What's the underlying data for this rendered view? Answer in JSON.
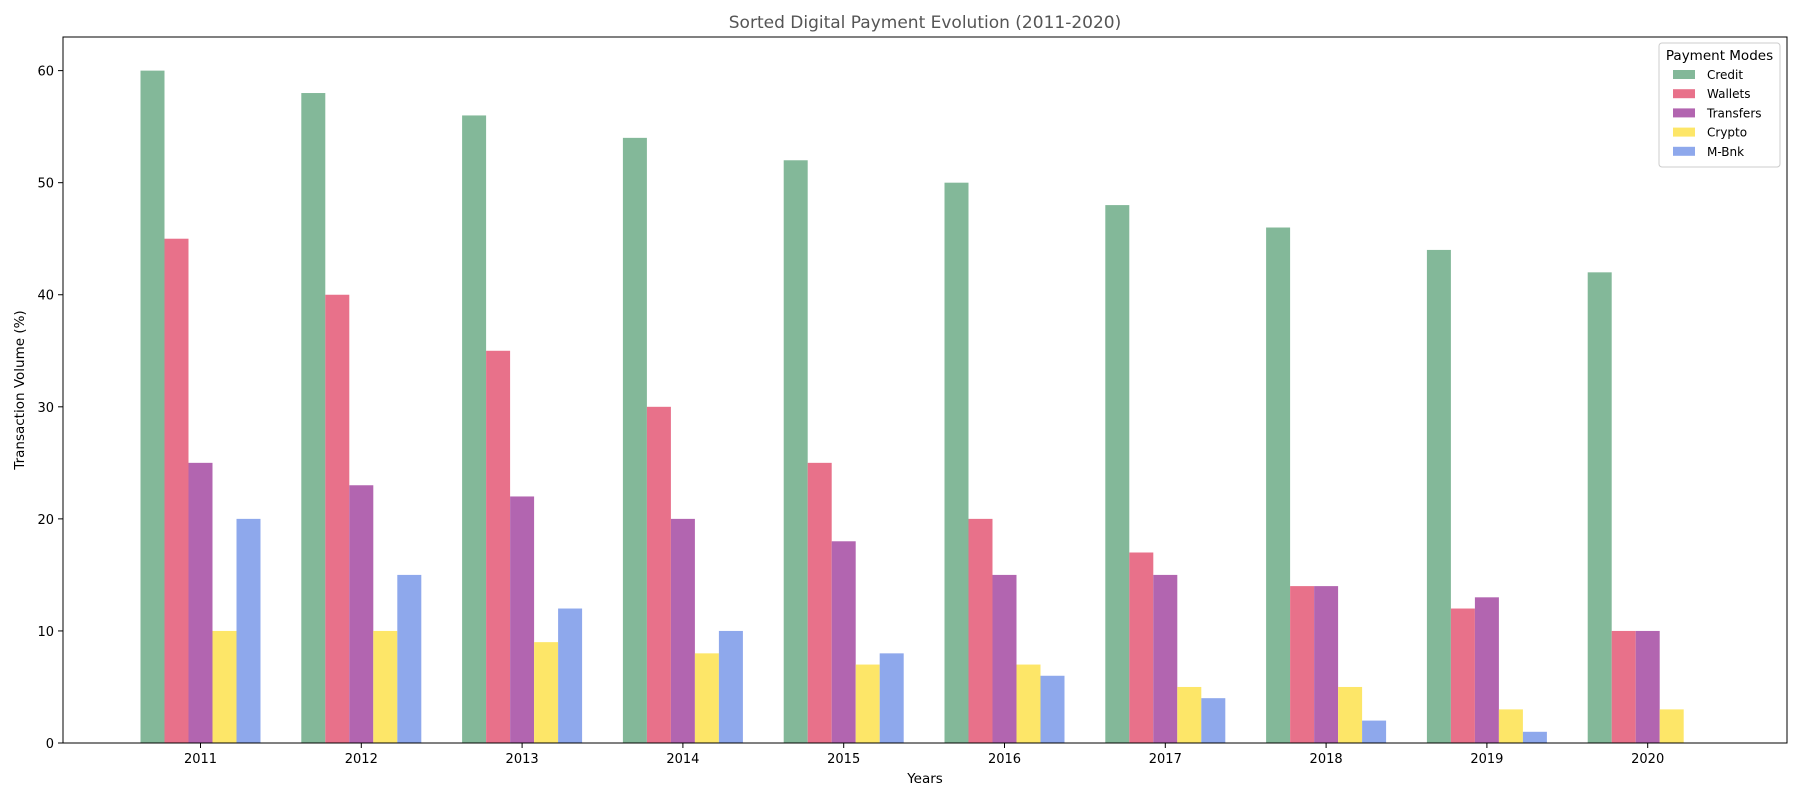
{
  "chart_data": {
    "type": "bar",
    "title": "Sorted Digital Payment Evolution (2011-2020)",
    "xlabel": "Years",
    "ylabel": "Transaction Volume (%)",
    "categories": [
      "2011",
      "2012",
      "2013",
      "2014",
      "2015",
      "2016",
      "2017",
      "2018",
      "2019",
      "2020"
    ],
    "ylim": [
      0,
      63
    ],
    "yticks": [
      0,
      10,
      20,
      30,
      40,
      50,
      60
    ],
    "grid": false,
    "legend": {
      "title": "Payment Modes",
      "placement": "top-right"
    },
    "series": [
      {
        "name": "Credit",
        "color": "#83b899",
        "values": [
          60,
          58,
          56,
          54,
          52,
          50,
          48,
          46,
          44,
          42
        ]
      },
      {
        "name": "Wallets",
        "color": "#e8718a",
        "values": [
          45,
          40,
          35,
          30,
          25,
          20,
          17,
          14,
          12,
          10
        ]
      },
      {
        "name": "Transfers",
        "color": "#b265b0",
        "values": [
          25,
          23,
          22,
          20,
          18,
          15,
          15,
          14,
          13,
          10
        ]
      },
      {
        "name": "Crypto",
        "color": "#fde668",
        "values": [
          10,
          10,
          9,
          8,
          7,
          7,
          5,
          5,
          3,
          3
        ]
      },
      {
        "name": "M-Bnk",
        "color": "#8ea8ec",
        "values": [
          20,
          15,
          12,
          10,
          8,
          6,
          4,
          2,
          1,
          0
        ]
      }
    ]
  }
}
